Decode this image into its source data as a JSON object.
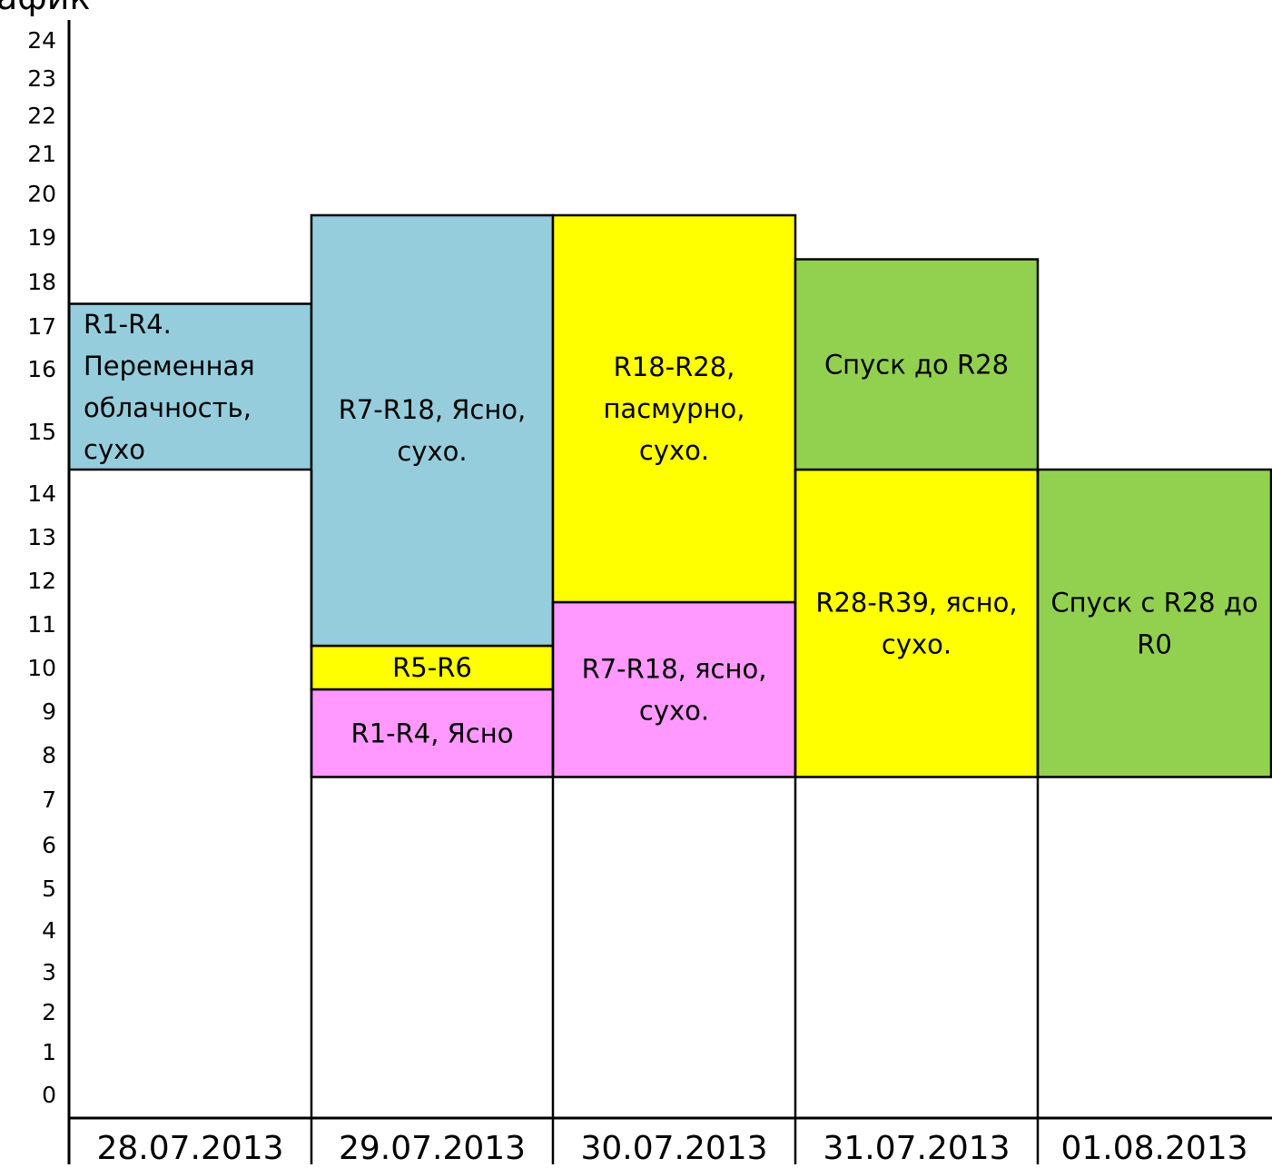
{
  "chart_data": {
    "type": "table",
    "title": "афик",
    "y_ticks": [
      0,
      1,
      2,
      3,
      4,
      5,
      6,
      7,
      8,
      9,
      10,
      11,
      12,
      13,
      14,
      15,
      16,
      17,
      18,
      19,
      20,
      21,
      22,
      23,
      24
    ],
    "ylim": [
      0,
      24
    ],
    "columns": [
      "28.07.2013",
      "29.07.2013",
      "30.07.2013",
      "31.07.2013",
      "01.08.2013"
    ],
    "blocks": [
      {
        "column": 0,
        "start": 14.5,
        "end": 17.5,
        "color": "#96cddc",
        "lines": [
          "R1-R4.",
          "Переменная",
          "облачность,",
          "сухо"
        ],
        "align": "left"
      },
      {
        "column": 1,
        "start": 7.5,
        "end": 9.5,
        "color": "#ff99ff",
        "lines": [
          "R1-R4, Ясно"
        ],
        "align": "center"
      },
      {
        "column": 1,
        "start": 9.5,
        "end": 10.5,
        "color": "#ffff00",
        "lines": [
          "R5-R6"
        ],
        "align": "center"
      },
      {
        "column": 1,
        "start": 10.5,
        "end": 19.5,
        "color": "#96cddc",
        "lines": [
          "R7-R18, Ясно,",
          "сухо."
        ],
        "align": "center"
      },
      {
        "column": 2,
        "start": 7.5,
        "end": 11.5,
        "color": "#ff99ff",
        "lines": [
          "R7-R18, ясно,",
          "сухо."
        ],
        "align": "center"
      },
      {
        "column": 2,
        "start": 11.5,
        "end": 19.5,
        "color": "#ffff00",
        "lines": [
          "R18-R28,",
          "пасмурно,",
          "сухо."
        ],
        "align": "center"
      },
      {
        "column": 3,
        "start": 7.5,
        "end": 14.5,
        "color": "#ffff00",
        "lines": [
          "R28-R39, ясно,",
          "сухо."
        ],
        "align": "center"
      },
      {
        "column": 3,
        "start": 14.5,
        "end": 18.5,
        "color": "#92d050",
        "lines": [
          "Спуск до R28"
        ],
        "align": "center"
      },
      {
        "column": 4,
        "start": 7.5,
        "end": 14.5,
        "color": "#92d050",
        "lines": [
          "Спуск с R28 до",
          "R0"
        ],
        "align": "center"
      }
    ]
  }
}
